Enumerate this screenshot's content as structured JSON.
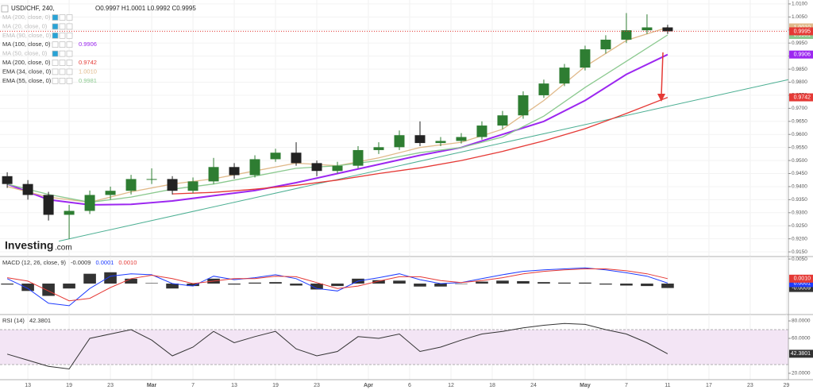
{
  "chart_data": [
    {
      "type": "candlestick",
      "title": "USD/CHF, 240,",
      "ohlc": "O0.9997 H1.0001 L0.9992 C0.9995",
      "watermark": {
        "brand": "Investing",
        "suffix": ".com"
      },
      "up_color": "#2e7d32",
      "down_color": "#222222",
      "grid": true,
      "xlim": [
        -2.7,
        73.7
      ],
      "xticks": [
        {
          "value": 0,
          "label": "13"
        },
        {
          "value": 4,
          "label": "19"
        },
        {
          "value": 8,
          "label": "23"
        },
        {
          "value": 12,
          "label": "Mar"
        },
        {
          "value": 16,
          "label": "7"
        },
        {
          "value": 20,
          "label": "13"
        },
        {
          "value": 24,
          "label": "19"
        },
        {
          "value": 28,
          "label": "23"
        },
        {
          "value": 33,
          "label": "Apr"
        },
        {
          "value": 37,
          "label": "6"
        },
        {
          "value": 41,
          "label": "12"
        },
        {
          "value": 45,
          "label": "18"
        },
        {
          "value": 49,
          "label": "24"
        },
        {
          "value": 54,
          "label": "May"
        },
        {
          "value": 58,
          "label": "7"
        },
        {
          "value": 62,
          "label": "11"
        },
        {
          "value": 66,
          "label": "17"
        },
        {
          "value": 70,
          "label": "23"
        },
        {
          "value": 73.5,
          "label": "29"
        }
      ],
      "ylim": [
        0.9132,
        1.0115
      ],
      "yticks": [
        {
          "value": 1.01,
          "label": "1.0100"
        },
        {
          "value": 1.005,
          "label": "1.0050"
        },
        {
          "value": 1.0,
          "label": "1.0000"
        },
        {
          "value": 0.995,
          "label": "0.9950"
        },
        {
          "value": 0.99,
          "label": "0.9900"
        },
        {
          "value": 0.985,
          "label": "0.9850"
        },
        {
          "value": 0.98,
          "label": "0.9800"
        },
        {
          "value": 0.975,
          "label": "0.9750"
        },
        {
          "value": 0.97,
          "label": "0.9700"
        },
        {
          "value": 0.965,
          "label": "0.9650"
        },
        {
          "value": 0.96,
          "label": "0.9600"
        },
        {
          "value": 0.955,
          "label": "0.9550"
        },
        {
          "value": 0.95,
          "label": "0.9500"
        },
        {
          "value": 0.945,
          "label": "0.9450"
        },
        {
          "value": 0.94,
          "label": "0.9400"
        },
        {
          "value": 0.935,
          "label": "0.9350"
        },
        {
          "value": 0.93,
          "label": "0.9300"
        },
        {
          "value": 0.925,
          "label": "0.9250"
        },
        {
          "value": 0.92,
          "label": "0.9200"
        },
        {
          "value": 0.915,
          "label": "0.9150"
        }
      ],
      "x": [
        -2,
        0,
        2,
        4,
        6,
        8,
        10,
        12,
        14,
        16,
        18,
        20,
        22,
        24,
        26,
        28,
        30,
        32,
        34,
        36,
        38,
        40,
        42,
        44,
        46,
        48,
        50,
        52,
        54,
        56,
        58,
        60,
        62
      ],
      "open": [
        0.944,
        0.941,
        0.9368,
        0.9292,
        0.9307,
        0.9368,
        0.9384,
        0.9429,
        0.9429,
        0.9384,
        0.942,
        0.9475,
        0.9444,
        0.9505,
        0.953,
        0.949,
        0.946,
        0.948,
        0.954,
        0.9551,
        0.9597,
        0.9567,
        0.9575,
        0.959,
        0.9634,
        0.9673,
        0.975,
        0.9795,
        0.9856,
        0.9926,
        0.9963,
        0.9999,
        1.001
      ],
      "high": [
        0.9455,
        0.9425,
        0.938,
        0.933,
        0.9385,
        0.94,
        0.9445,
        0.947,
        0.944,
        0.9435,
        0.951,
        0.949,
        0.952,
        0.9545,
        0.957,
        0.95,
        0.9495,
        0.9555,
        0.957,
        0.9615,
        0.965,
        0.959,
        0.9605,
        0.965,
        0.969,
        0.9765,
        0.981,
        0.987,
        0.994,
        0.998,
        1.0065,
        1.006,
        1.002
      ],
      "low": [
        0.9395,
        0.935,
        0.927,
        0.92,
        0.9295,
        0.935,
        0.937,
        0.941,
        0.937,
        0.9375,
        0.941,
        0.943,
        0.9435,
        0.9495,
        0.948,
        0.944,
        0.945,
        0.947,
        0.9525,
        0.954,
        0.9555,
        0.9555,
        0.9565,
        0.958,
        0.962,
        0.966,
        0.974,
        0.9785,
        0.9845,
        0.991,
        0.995,
        0.9985,
        0.9985
      ],
      "close": [
        0.941,
        0.9368,
        0.9292,
        0.9307,
        0.9368,
        0.9384,
        0.9429,
        0.9429,
        0.9384,
        0.942,
        0.9475,
        0.9444,
        0.9505,
        0.953,
        0.949,
        0.946,
        0.948,
        0.954,
        0.9551,
        0.9597,
        0.9567,
        0.9575,
        0.959,
        0.9634,
        0.9673,
        0.975,
        0.9795,
        0.9856,
        0.9926,
        0.9963,
        0.9999,
        1.001,
        0.9995
      ],
      "close_color": "#e53935",
      "trendline": {
        "color": "#4caf93",
        "x": [
          3,
          73.7
        ],
        "values": [
          0.9191,
          0.981
        ]
      },
      "series": [
        {
          "name": "MA (200, close, 0)",
          "visible": false
        },
        {
          "name": "MA (20, close, 0)",
          "visible": false
        },
        {
          "name": "EMA (90, close, 0)",
          "visible": false
        },
        {
          "name": "MA (100, close, 0)",
          "visible": true,
          "color": "#9c27f0",
          "x": [
            -2,
            2,
            6,
            10,
            14,
            18,
            22,
            26,
            30,
            34,
            38,
            42,
            46,
            50,
            54,
            58,
            62
          ],
          "values": [
            0.941,
            0.935,
            0.933,
            0.9332,
            0.9345,
            0.9365,
            0.9385,
            0.9415,
            0.945,
            0.9485,
            0.952,
            0.955,
            0.96,
            0.965,
            0.973,
            0.983,
            0.9906
          ]
        },
        {
          "name": "MA (50, close, 0)",
          "visible": false
        },
        {
          "name": "MA (200, close, 0)",
          "visible": true,
          "color": "#e53935",
          "x": [
            -2,
            2,
            6,
            10,
            14,
            18,
            22,
            26,
            30,
            34,
            38,
            42,
            46,
            50,
            54,
            58,
            62
          ],
          "values": [
            null,
            null,
            null,
            null,
            0.9372,
            0.9378,
            0.939,
            0.9405,
            0.9425,
            0.945,
            0.9472,
            0.95,
            0.9535,
            0.9575,
            0.9622,
            0.968,
            0.9742
          ]
        },
        {
          "name": "EMA (34, close, 0)",
          "visible": true,
          "color": "#e0b98a",
          "x": [
            -2,
            2,
            6,
            10,
            14,
            18,
            22,
            26,
            30,
            34,
            38,
            42,
            46,
            50,
            54,
            58,
            62
          ],
          "values": [
            0.94,
            0.936,
            0.934,
            0.938,
            0.941,
            0.943,
            0.946,
            0.949,
            0.948,
            0.951,
            0.955,
            0.957,
            0.962,
            0.973,
            0.986,
            0.996,
            1.001
          ],
          "value_labels": [
            null,
            null,
            null,
            null,
            null,
            null,
            null,
            null,
            null,
            null,
            null,
            null,
            null,
            null,
            null,
            null,
            "1.0010"
          ]
        },
        {
          "name": "EMA (55, close, 0)",
          "visible": true,
          "color": "#8bc98f",
          "x": [
            -2,
            2,
            6,
            10,
            14,
            18,
            22,
            26,
            30,
            34,
            38,
            42,
            46,
            50,
            54,
            58,
            62
          ],
          "values": [
            0.941,
            0.937,
            0.934,
            0.936,
            0.939,
            0.941,
            0.944,
            0.947,
            0.948,
            0.95,
            0.953,
            0.955,
            0.959,
            0.967,
            0.978,
            0.988,
            0.9981
          ]
        }
      ]
    },
    {
      "type": "line",
      "title": "MACD (12, 26, close, 9)",
      "ylim": [
        -0.0063,
        0.0055
      ],
      "yticks": [
        {
          "value": 0.005,
          "label": "0.0050"
        }
      ],
      "grid": true,
      "x": [
        -2,
        0,
        2,
        4,
        6,
        8,
        10,
        12,
        14,
        16,
        18,
        20,
        22,
        24,
        26,
        28,
        30,
        32,
        34,
        36,
        38,
        40,
        42,
        44,
        46,
        48,
        50,
        52,
        54,
        56,
        58,
        60,
        62
      ],
      "series": [
        {
          "style": "histogram",
          "color": "#333333",
          "values": [
            -0.0002,
            -0.0015,
            -0.0025,
            -0.001,
            0.002,
            0.0023,
            0.001,
            0.0001,
            -0.001,
            -0.0005,
            0.001,
            -0.0002,
            0.0002,
            0.0003,
            -0.0004,
            -0.0012,
            -0.0005,
            0.001,
            0.0007,
            0.0006,
            -0.0006,
            -0.0006,
            0.0,
            0.0004,
            0.0006,
            0.0005,
            0.0003,
            0.0002,
            0.0002,
            -0.0002,
            -0.0004,
            -0.0005,
            -0.0009
          ]
        },
        {
          "color": "#1e3cff",
          "values": [
            0.001,
            -0.001,
            -0.004,
            -0.0045,
            -0.001,
            0.0015,
            0.002,
            0.0018,
            0.0,
            -0.0005,
            0.0015,
            0.0008,
            0.0012,
            0.0018,
            0.001,
            -0.001,
            -0.0015,
            0.0005,
            0.0012,
            0.002,
            0.0008,
            0.0,
            0.0002,
            0.001,
            0.0018,
            0.0025,
            0.0028,
            0.003,
            0.0032,
            0.0028,
            0.0022,
            0.0015,
            0.0001
          ]
        },
        {
          "color": "#e53935",
          "values": [
            0.0012,
            0.0005,
            -0.0015,
            -0.0035,
            -0.003,
            -0.0008,
            0.001,
            0.0017,
            0.001,
            0.0,
            0.0005,
            0.001,
            0.001,
            0.0015,
            0.0014,
            0.0002,
            -0.001,
            -0.0005,
            0.0005,
            0.0014,
            0.0014,
            0.0006,
            0.0002,
            0.0006,
            0.0012,
            0.002,
            0.0025,
            0.0028,
            0.003,
            0.003,
            0.0026,
            0.002,
            0.001
          ],
          "value_labels": [
            null,
            null,
            null,
            null,
            null,
            null,
            null,
            null,
            null,
            null,
            null,
            null,
            null,
            null,
            null,
            null,
            null,
            null,
            null,
            null,
            null,
            null,
            null,
            null,
            null,
            null,
            null,
            null,
            null,
            null,
            null,
            null,
            "0.0010"
          ]
        }
      ]
    },
    {
      "type": "line",
      "title": "RSI (14)",
      "ylim": [
        12.7,
        87.3
      ],
      "yticks": [
        {
          "value": 80,
          "label": "80.0000"
        },
        {
          "value": 60,
          "label": "60.0000"
        },
        {
          "value": 20,
          "label": "20.0000"
        }
      ],
      "grid": false,
      "bands": [
        30,
        70
      ],
      "band_color": "#f3e5f5",
      "x": [
        -2,
        0,
        2,
        4,
        6,
        8,
        10,
        12,
        14,
        16,
        18,
        20,
        22,
        24,
        26,
        28,
        30,
        32,
        34,
        36,
        38,
        40,
        42,
        44,
        46,
        48,
        50,
        52,
        54,
        56,
        58,
        60,
        62
      ],
      "series": [
        {
          "color": "#333333",
          "values": [
            42,
            35,
            28,
            25,
            60,
            65,
            70,
            58,
            40,
            50,
            68,
            55,
            62,
            68,
            48,
            40,
            45,
            62,
            60,
            65,
            45,
            50,
            58,
            65,
            68,
            72,
            75,
            77,
            76,
            70,
            65,
            55,
            42.3801
          ]
        }
      ]
    }
  ]
}
